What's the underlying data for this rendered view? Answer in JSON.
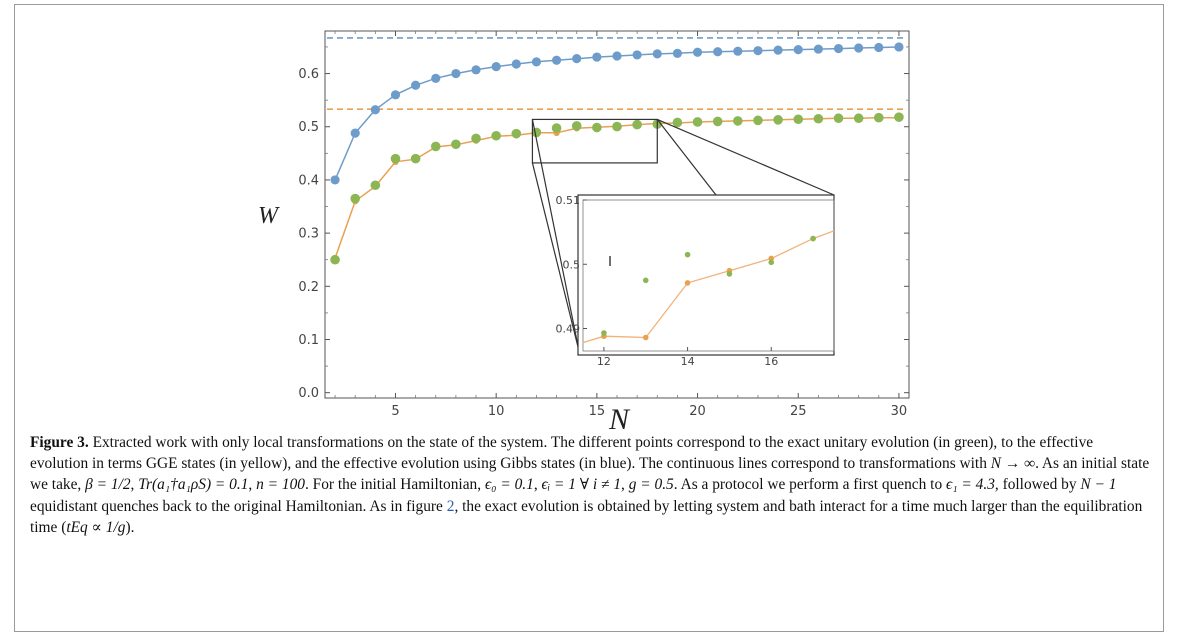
{
  "chart_data": {
    "type": "scatter",
    "xlabel": "N",
    "ylabel": "W",
    "xlim": [
      1.5,
      30.5
    ],
    "ylim": [
      -0.01,
      0.68
    ],
    "x_ticks": [
      "5",
      "10",
      "15",
      "20",
      "25",
      "30"
    ],
    "y_ticks": [
      "0.0",
      "0.1",
      "0.2",
      "0.3",
      "0.4",
      "0.5",
      "0.6"
    ],
    "grid": false,
    "series": [
      {
        "color": "#6e9cca",
        "line": true,
        "x": [
          2,
          3,
          4,
          5,
          6,
          7,
          8,
          9,
          10,
          11,
          12,
          13,
          14,
          15,
          16,
          17,
          18,
          19,
          20,
          21,
          22,
          23,
          24,
          25,
          26,
          27,
          28,
          29,
          30
        ],
        "y": [
          0.4,
          0.488,
          0.532,
          0.56,
          0.578,
          0.591,
          0.6,
          0.607,
          0.613,
          0.618,
          0.622,
          0.625,
          0.628,
          0.631,
          0.633,
          0.635,
          0.637,
          0.638,
          0.64,
          0.641,
          0.642,
          0.643,
          0.644,
          0.645,
          0.646,
          0.647,
          0.648,
          0.649,
          0.65
        ]
      },
      {
        "color": "#e9a150",
        "line": true,
        "x": [
          2,
          3,
          4,
          5,
          6,
          7,
          8,
          9,
          10,
          11,
          12,
          13,
          14,
          15,
          16,
          17,
          18,
          19,
          20,
          21,
          22,
          23,
          24,
          25,
          26,
          27,
          28,
          29,
          30
        ],
        "y": [
          0.253,
          0.36,
          0.388,
          0.434,
          0.439,
          0.462,
          0.466,
          0.474,
          0.482,
          0.484,
          0.4888,
          0.4886,
          0.4971,
          0.499,
          0.5009,
          0.504,
          0.506,
          0.507,
          0.509,
          0.51,
          0.511,
          0.512,
          0.513,
          0.514,
          0.515,
          0.516,
          0.516,
          0.517,
          0.517
        ]
      },
      {
        "color": "#8cb553",
        "line": false,
        "x": [
          2,
          3,
          4,
          5,
          6,
          7,
          8,
          9,
          10,
          11,
          12,
          13,
          14,
          15,
          16,
          17,
          18,
          19,
          20,
          21,
          22,
          23,
          24,
          25,
          26,
          27,
          28,
          29,
          30
        ],
        "y": [
          0.25,
          0.365,
          0.39,
          0.44,
          0.44,
          0.463,
          0.467,
          0.478,
          0.483,
          0.487,
          0.4893,
          0.4975,
          0.5015,
          0.4985,
          0.5003,
          0.504,
          0.505,
          0.508,
          0.509,
          0.51,
          0.511,
          0.512,
          0.513,
          0.514,
          0.515,
          0.516,
          0.516,
          0.517,
          0.518
        ]
      }
    ],
    "asymptotes": [
      {
        "y": 0.667,
        "color": "#6e9cca"
      },
      {
        "y": 0.533,
        "color": "#e9a150"
      }
    ],
    "inset": {
      "xlim": [
        11.5,
        17.5
      ],
      "ylim": [
        0.4865,
        0.51
      ],
      "x_ticks": [
        "12",
        "14",
        "16"
      ],
      "y_ticks": [
        "0.49",
        "0.5",
        "0.51"
      ],
      "zoom_region": {
        "x": [
          11.8,
          18
        ],
        "y": [
          0.4865,
          0.51
        ]
      }
    }
  },
  "caption": {
    "label": "Figure 3.",
    "parts": [
      {
        "t": " Extracted work with only local transformations on the state of the system. The different points correspond to the exact unitary evolution (in green), to the effective evolution in terms GGE states (in yellow), and the effective evolution using Gibbs states (in blue). The continuous lines correspond to transformations with "
      },
      {
        "t": "N → ∞",
        "m": true
      },
      {
        "t": ". As an initial state we take, "
      },
      {
        "t": "β = 1/2",
        "m": true
      },
      {
        "t": ", "
      },
      {
        "t": "Tr(a₁†a₁ρS) = 0.1",
        "m": true
      },
      {
        "t": ", "
      },
      {
        "t": "n = 100",
        "m": true
      },
      {
        "t": ". For the initial Hamiltonian, "
      },
      {
        "t": "ϵ₀ = 0.1",
        "m": true
      },
      {
        "t": ", "
      },
      {
        "t": "ϵᵢ = 1 ∀ i ≠ 1",
        "m": true
      },
      {
        "t": ", "
      },
      {
        "t": "g = 0.5",
        "m": true
      },
      {
        "t": ". As a protocol we perform a first quench to "
      },
      {
        "t": "ϵ₁ = 4.3",
        "m": true
      },
      {
        "t": ", followed by "
      },
      {
        "t": "N − 1",
        "m": true
      },
      {
        "t": " equidistant quenches back to the original Hamiltonian. As in figure "
      },
      {
        "t": "2",
        "ref": true
      },
      {
        "t": ", the exact evolution is obtained by letting system and bath interact for a time much larger than the equilibration time ("
      },
      {
        "t": "tEq ∝ 1/g",
        "m": true
      },
      {
        "t": ")."
      }
    ]
  }
}
